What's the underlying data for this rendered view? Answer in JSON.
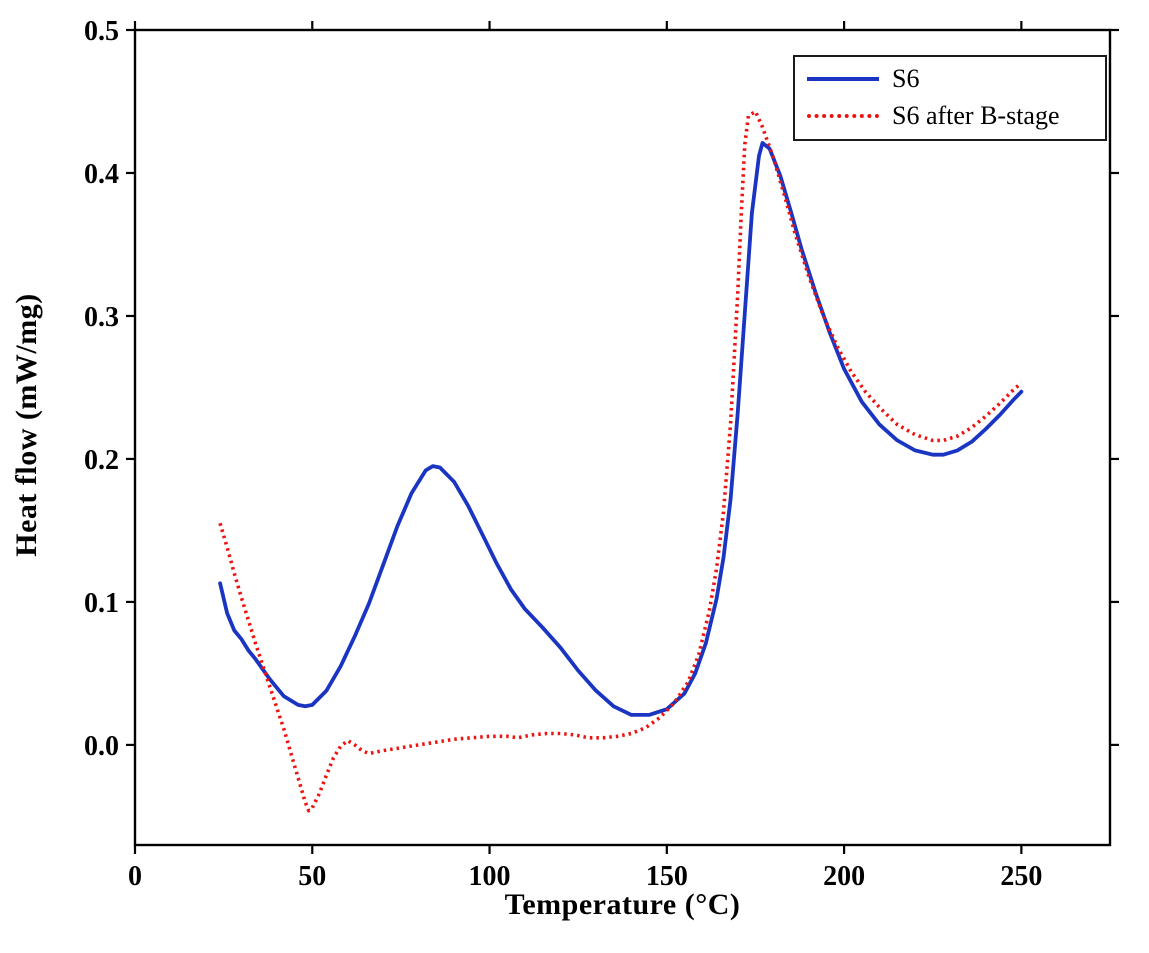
{
  "chart_data": {
    "type": "line",
    "title": "",
    "xlabel": "Temperature (°C)",
    "ylabel": "Heat flow (mW/mg)",
    "xlim": [
      0,
      275
    ],
    "ylim": [
      -0.07,
      0.5
    ],
    "xticks": [
      0,
      50,
      100,
      150,
      200,
      250
    ],
    "xtick_labels": [
      "0",
      "50",
      "100",
      "150",
      "200",
      "250"
    ],
    "yticks": [
      0.0,
      0.1,
      0.2,
      0.3,
      0.4,
      0.5
    ],
    "ytick_labels": [
      "0.0",
      "0.1",
      "0.2",
      "0.3",
      "0.4",
      "0.5"
    ],
    "grid": false,
    "legend_position": "top-right",
    "frame_color": "#000000",
    "series": [
      {
        "id": "s6",
        "name": "S6",
        "color": "#1a35c1",
        "style": "solid",
        "x": [
          24,
          26,
          28,
          30,
          32,
          34,
          38,
          42,
          46,
          48,
          50,
          54,
          58,
          62,
          66,
          70,
          74,
          78,
          82,
          84,
          86,
          90,
          94,
          98,
          102,
          106,
          110,
          115,
          120,
          125,
          130,
          135,
          140,
          145,
          150,
          155,
          158,
          161,
          164,
          166,
          168,
          170,
          172,
          174,
          176,
          177,
          179,
          182,
          185,
          188,
          192,
          196,
          200,
          205,
          210,
          215,
          220,
          225,
          228,
          232,
          236,
          240,
          244,
          248,
          250
        ],
        "y": [
          0.113,
          0.092,
          0.08,
          0.074,
          0.066,
          0.06,
          0.046,
          0.034,
          0.028,
          0.027,
          0.028,
          0.038,
          0.055,
          0.076,
          0.099,
          0.126,
          0.153,
          0.176,
          0.192,
          0.195,
          0.194,
          0.184,
          0.167,
          0.147,
          0.127,
          0.109,
          0.095,
          0.082,
          0.068,
          0.052,
          0.038,
          0.027,
          0.021,
          0.021,
          0.025,
          0.036,
          0.05,
          0.071,
          0.102,
          0.131,
          0.172,
          0.232,
          0.302,
          0.372,
          0.412,
          0.421,
          0.417,
          0.398,
          0.373,
          0.347,
          0.316,
          0.288,
          0.263,
          0.24,
          0.224,
          0.213,
          0.206,
          0.203,
          0.203,
          0.206,
          0.212,
          0.221,
          0.231,
          0.242,
          0.247
        ]
      },
      {
        "id": "s6-after-b-stage",
        "name": "S6 after B-stage",
        "color": "#eb1410",
        "style": "dotted",
        "x": [
          24,
          26,
          28,
          30,
          32,
          34,
          36,
          38,
          40,
          42,
          44,
          46,
          48,
          49,
          50,
          52,
          54,
          56,
          58,
          60,
          62,
          64,
          66,
          70,
          75,
          80,
          85,
          90,
          95,
          100,
          105,
          108,
          112,
          116,
          120,
          124,
          128,
          132,
          136,
          140,
          144,
          148,
          152,
          156,
          159,
          162,
          164,
          166,
          168,
          170,
          171,
          172,
          173,
          175,
          177,
          180,
          183,
          186,
          190,
          194,
          198,
          202,
          206,
          210,
          215,
          220,
          225,
          228,
          232,
          236,
          240,
          244,
          248,
          250
        ],
        "y": [
          0.155,
          0.138,
          0.12,
          0.103,
          0.087,
          0.071,
          0.056,
          0.041,
          0.026,
          0.011,
          -0.006,
          -0.023,
          -0.04,
          -0.046,
          -0.044,
          -0.034,
          -0.021,
          -0.009,
          -0.001,
          0.003,
          0.0,
          -0.004,
          -0.006,
          -0.004,
          -0.002,
          0.0,
          0.002,
          0.004,
          0.005,
          0.006,
          0.006,
          0.005,
          0.007,
          0.008,
          0.008,
          0.007,
          0.005,
          0.005,
          0.006,
          0.008,
          0.012,
          0.019,
          0.029,
          0.044,
          0.063,
          0.094,
          0.123,
          0.163,
          0.225,
          0.315,
          0.372,
          0.42,
          0.44,
          0.443,
          0.432,
          0.411,
          0.386,
          0.359,
          0.328,
          0.301,
          0.279,
          0.261,
          0.247,
          0.236,
          0.224,
          0.217,
          0.213,
          0.213,
          0.216,
          0.222,
          0.23,
          0.239,
          0.249,
          0.253
        ]
      }
    ]
  }
}
